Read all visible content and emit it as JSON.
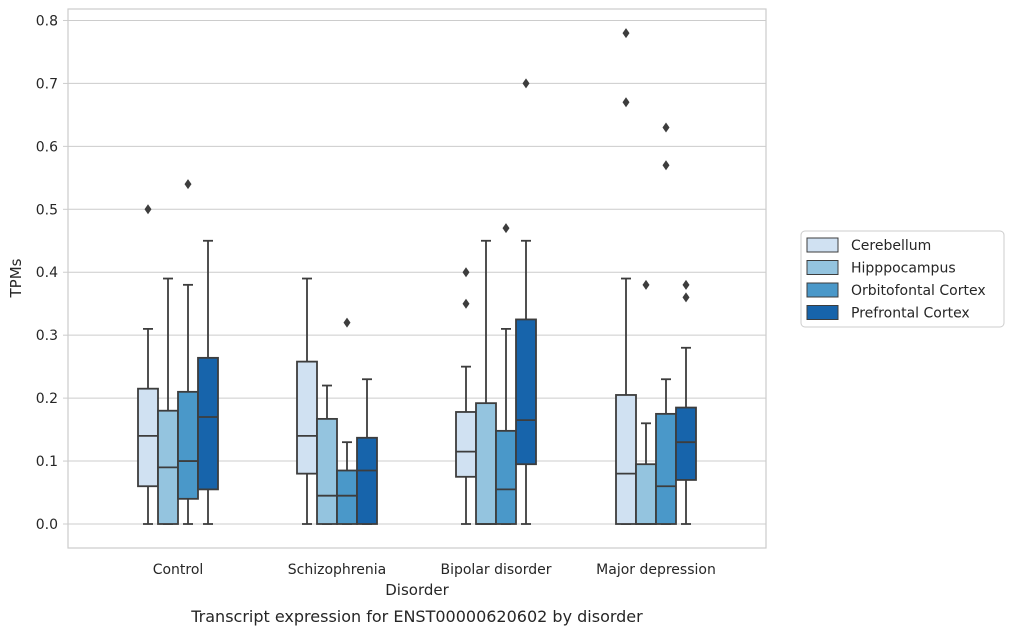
{
  "chart_data": {
    "type": "boxplot",
    "xlabel": "Disorder",
    "ylabel": "TPMs",
    "caption": "Transcript expression for ENST00000620602 by disorder",
    "ylim": [
      -0.04,
      0.82
    ],
    "yticks": [
      "0.0",
      "0.1",
      "0.2",
      "0.3",
      "0.4",
      "0.5",
      "0.6",
      "0.7",
      "0.8"
    ],
    "categories": [
      "Control",
      "Schizophrenia",
      "Bipolar disorder",
      "Major depression"
    ],
    "grid": true,
    "legend_position": "right",
    "series": [
      {
        "name": "Cerebellum",
        "color": "#d0e1f2",
        "boxes": [
          {
            "min": 0.0,
            "q1": 0.06,
            "median": 0.14,
            "q3": 0.215,
            "max": 0.31,
            "outliers": [
              0.5
            ]
          },
          {
            "min": 0.0,
            "q1": 0.08,
            "median": 0.14,
            "q3": 0.258,
            "max": 0.39,
            "outliers": []
          },
          {
            "min": 0.0,
            "q1": 0.075,
            "median": 0.115,
            "q3": 0.178,
            "max": 0.25,
            "outliers": [
              0.35,
              0.4
            ]
          },
          {
            "min": 0.0,
            "q1": 0.0,
            "median": 0.08,
            "q3": 0.205,
            "max": 0.39,
            "outliers": [
              0.67,
              0.78
            ]
          }
        ]
      },
      {
        "name": "Hipppocampus",
        "color": "#94c4df",
        "boxes": [
          {
            "min": 0.0,
            "q1": 0.0,
            "median": 0.09,
            "q3": 0.18,
            "max": 0.39,
            "outliers": []
          },
          {
            "min": 0.0,
            "q1": 0.0,
            "median": 0.045,
            "q3": 0.167,
            "max": 0.22,
            "outliers": []
          },
          {
            "min": 0.0,
            "q1": 0.0,
            "median": 0.0,
            "q3": 0.192,
            "max": 0.45,
            "outliers": []
          },
          {
            "min": 0.0,
            "q1": 0.0,
            "median": 0.0,
            "q3": 0.095,
            "max": 0.16,
            "outliers": [
              0.38
            ]
          }
        ]
      },
      {
        "name": "Orbitofontal Cortex",
        "color": "#4a98c9",
        "boxes": [
          {
            "min": 0.0,
            "q1": 0.04,
            "median": 0.1,
            "q3": 0.21,
            "max": 0.38,
            "outliers": [
              0.54
            ]
          },
          {
            "min": 0.0,
            "q1": 0.0,
            "median": 0.045,
            "q3": 0.085,
            "max": 0.13,
            "outliers": [
              0.32
            ]
          },
          {
            "min": 0.0,
            "q1": 0.0,
            "median": 0.055,
            "q3": 0.148,
            "max": 0.31,
            "outliers": [
              0.47
            ]
          },
          {
            "min": 0.0,
            "q1": 0.0,
            "median": 0.06,
            "q3": 0.175,
            "max": 0.23,
            "outliers": [
              0.57,
              0.63
            ]
          }
        ]
      },
      {
        "name": "Prefrontal Cortex",
        "color": "#1764ab",
        "boxes": [
          {
            "min": 0.0,
            "q1": 0.055,
            "median": 0.17,
            "q3": 0.264,
            "max": 0.45,
            "outliers": []
          },
          {
            "min": 0.0,
            "q1": 0.0,
            "median": 0.085,
            "q3": 0.137,
            "max": 0.23,
            "outliers": []
          },
          {
            "min": 0.0,
            "q1": 0.095,
            "median": 0.165,
            "q3": 0.325,
            "max": 0.45,
            "outliers": [
              0.7
            ]
          },
          {
            "min": 0.0,
            "q1": 0.07,
            "median": 0.13,
            "q3": 0.185,
            "max": 0.28,
            "outliers": [
              0.36,
              0.38
            ]
          }
        ]
      }
    ]
  }
}
